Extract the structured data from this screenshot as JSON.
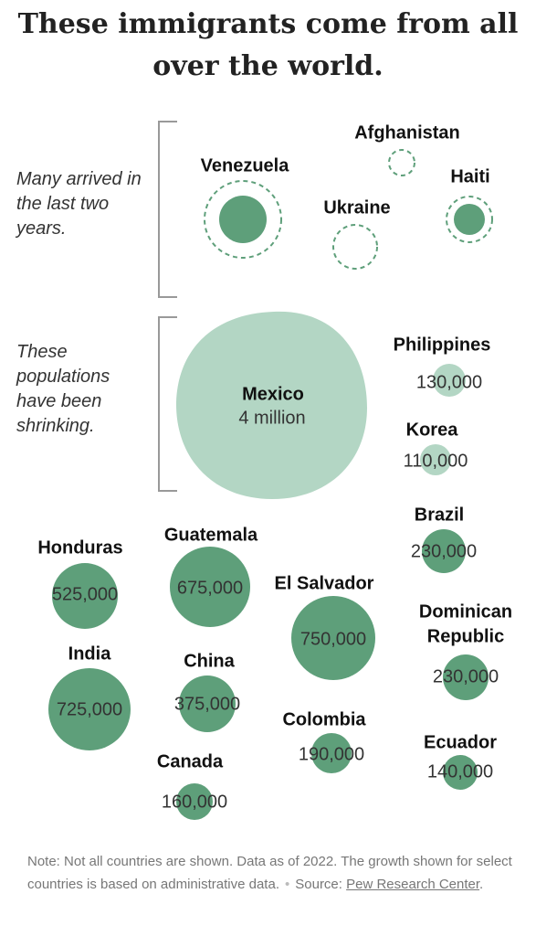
{
  "title": "These immigrants come from all over the world.",
  "colors": {
    "growing": "#5e9f7a",
    "shrinking": "#b3d6c4",
    "dashed_ring": "#5e9f7a",
    "bracket": "#999999",
    "label_text": "#111111",
    "value_text": "#333333"
  },
  "groups": {
    "recent": "Many arrived in the last two years.",
    "shrinking": "These populations have been shrinking."
  },
  "note": {
    "text": "Note: Not all countries are shown. Data as of 2022. The growth shown for select countries is based on administrative data.",
    "source_prefix": "Source:",
    "source_link": "Pew Research Center",
    "source_end": "."
  },
  "chart_data": {
    "type": "bubble",
    "title": "These immigrants come from all over the world.",
    "recent_arrivals": [
      {
        "country": "Venezuela"
      },
      {
        "country": "Afghanistan"
      },
      {
        "country": "Ukraine"
      },
      {
        "country": "Haiti"
      }
    ],
    "shrinking": [
      {
        "country": "Mexico",
        "label": "4 million",
        "value": 4000000
      },
      {
        "country": "Philippines",
        "label": "130,000",
        "value": 130000
      },
      {
        "country": "Korea",
        "label": "110,000",
        "value": 110000
      }
    ],
    "others": [
      {
        "country": "Honduras",
        "label": "525,000",
        "value": 525000
      },
      {
        "country": "Guatemala",
        "label": "675,000",
        "value": 675000
      },
      {
        "country": "El Salvador",
        "label": "750,000",
        "value": 750000
      },
      {
        "country": "Brazil",
        "label": "230,000",
        "value": 230000
      },
      {
        "country": "Dominican Republic",
        "label": "230,000",
        "value": 230000
      },
      {
        "country": "India",
        "label": "725,000",
        "value": 725000
      },
      {
        "country": "China",
        "label": "375,000",
        "value": 375000
      },
      {
        "country": "Colombia",
        "label": "190,000",
        "value": 190000
      },
      {
        "country": "Ecuador",
        "label": "140,000",
        "value": 140000
      },
      {
        "country": "Canada",
        "label": "160,000",
        "value": 160000
      }
    ]
  }
}
